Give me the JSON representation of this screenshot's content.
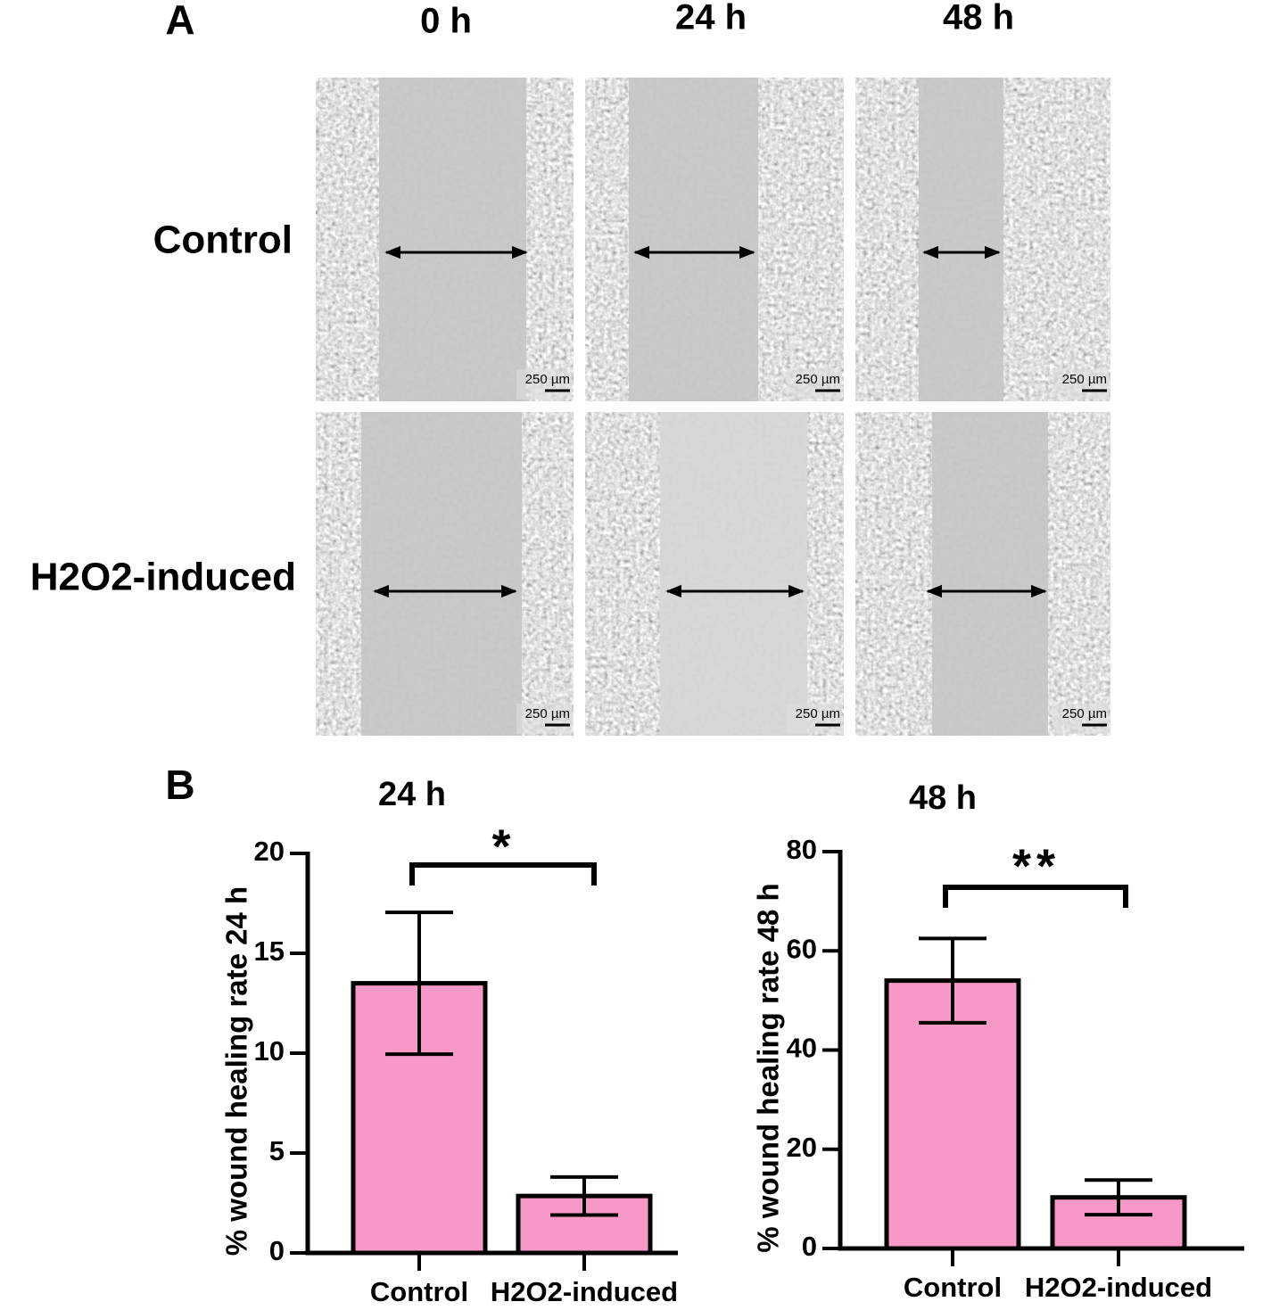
{
  "panel_labels": [
    "A",
    "B"
  ],
  "micrographs": {
    "columns": [
      "0 h",
      "24 h",
      "48 h"
    ],
    "rows": [
      "Control",
      "H2O2-induced"
    ],
    "scale_bar": "250 µm"
  },
  "chart_data": [
    {
      "type": "bar",
      "title": "24 h",
      "y_label": "% wound healing rate 24 h",
      "categories": [
        "Control",
        "H2O2-induced"
      ],
      "values": [
        13.5,
        2.85
      ],
      "errors": [
        3.55,
        0.95
      ],
      "color": "#f799c6",
      "ylim": [
        0,
        20
      ],
      "yticks": [
        0,
        5,
        10,
        15,
        20
      ],
      "annotation": "*"
    },
    {
      "type": "bar",
      "title": "48 h",
      "y_label": "% wound healing rate 48 h",
      "categories": [
        "Control",
        "H2O2-induced"
      ],
      "values": [
        54,
        10.3
      ],
      "errors": [
        8.5,
        3.5
      ],
      "color": "#f799c6",
      "ylim": [
        0,
        80
      ],
      "yticks": [
        0,
        20,
        40,
        60,
        80
      ],
      "annotation": "**"
    }
  ]
}
